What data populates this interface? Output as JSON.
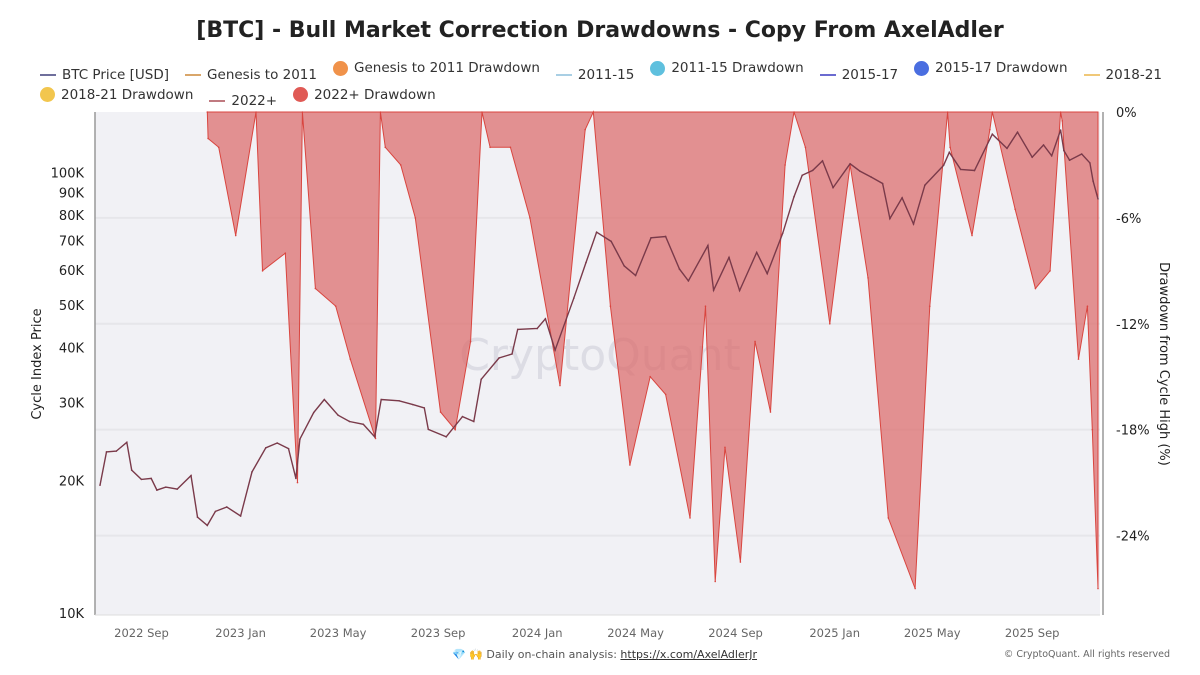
{
  "title": "[BTC] - Bull Market Correction Drawdowns - Copy From AxelAdler",
  "legend": [
    {
      "label": "BTC Price [USD]",
      "kind": "line",
      "color": "#6f6f9c"
    },
    {
      "label": "Genesis to 2011",
      "kind": "line",
      "color": "#d9a66a"
    },
    {
      "label": "Genesis to 2011 Drawdown",
      "kind": "dot",
      "color": "#f0924a"
    },
    {
      "label": "2011-15",
      "kind": "line",
      "color": "#a9cfe4"
    },
    {
      "label": "2011-15 Drawdown",
      "kind": "dot",
      "color": "#5fc0de"
    },
    {
      "label": "2015-17",
      "kind": "line",
      "color": "#6b6bd0"
    },
    {
      "label": "2015-17 Drawdown",
      "kind": "dot",
      "color": "#4a6ee0"
    },
    {
      "label": "2018-21",
      "kind": "line",
      "color": "#f0c878"
    },
    {
      "label": "2018-21 Drawdown",
      "kind": "dot",
      "color": "#f2c64e"
    },
    {
      "label": "2022+",
      "kind": "line",
      "color": "#c07a80"
    },
    {
      "label": "2022+ Drawdown",
      "kind": "dot",
      "color": "#e05a55"
    }
  ],
  "footer": {
    "icons": "💎 🙌",
    "text": "Daily on-chain analysis:",
    "link": "https://x.com/AxelAdlerJr",
    "copyright": "© CryptoQuant. All rights reserved"
  },
  "watermark": "CryptoQuant",
  "chart_data": {
    "type": "line+area",
    "title": "[BTC] - Bull Market Correction Drawdowns - Copy From AxelAdler",
    "ylabel_left": "Cycle Index Price",
    "ylabel_right": "Drawdown from Cycle High (%)",
    "xlim": [
      "2022-07-12",
      "2025-11-21"
    ],
    "ylim_left": [
      10000,
      137000
    ],
    "yscale_left": "log",
    "ylim_right": [
      -28.5,
      0
    ],
    "grid": true,
    "legend_position": "top",
    "x_ticks": [
      {
        "date": "2022-09-01",
        "label": "2022 Sep"
      },
      {
        "date": "2023-01-01",
        "label": "2023 Jan"
      },
      {
        "date": "2023-05-01",
        "label": "2023 May"
      },
      {
        "date": "2023-09-01",
        "label": "2023 Sep"
      },
      {
        "date": "2024-01-01",
        "label": "2024 Jan"
      },
      {
        "date": "2024-05-01",
        "label": "2024 May"
      },
      {
        "date": "2024-09-01",
        "label": "2024 Sep"
      },
      {
        "date": "2025-01-01",
        "label": "2025 Jan"
      },
      {
        "date": "2025-05-01",
        "label": "2025 May"
      },
      {
        "date": "2025-09-01",
        "label": "2025 Sep"
      }
    ],
    "y_ticks_left": [
      {
        "value": 10000,
        "label": "10K"
      },
      {
        "value": 20000,
        "label": "20K"
      },
      {
        "value": 30000,
        "label": "30K"
      },
      {
        "value": 40000,
        "label": "40K"
      },
      {
        "value": 50000,
        "label": "50K"
      },
      {
        "value": 60000,
        "label": "60K"
      },
      {
        "value": 70000,
        "label": "70K"
      },
      {
        "value": 80000,
        "label": "80K"
      },
      {
        "value": 90000,
        "label": "90K"
      },
      {
        "value": 100000,
        "label": "100K"
      }
    ],
    "y_ticks_right": [
      {
        "value": 0,
        "label": "0%"
      },
      {
        "value": -6,
        "label": "-6%"
      },
      {
        "value": -12,
        "label": "-12%"
      },
      {
        "value": -18,
        "label": "-18%"
      },
      {
        "value": -24,
        "label": "-24%"
      }
    ],
    "series": [
      {
        "name": "2022+",
        "axis": "left",
        "color": "#7a3a4a",
        "points": [
          [
            "2022-07-12",
            19500
          ],
          [
            "2022-07-20",
            23200
          ],
          [
            "2022-08-01",
            23300
          ],
          [
            "2022-08-14",
            24400
          ],
          [
            "2022-08-20",
            21100
          ],
          [
            "2022-09-01",
            20100
          ],
          [
            "2022-09-13",
            20200
          ],
          [
            "2022-09-20",
            19000
          ],
          [
            "2022-10-01",
            19300
          ],
          [
            "2022-10-15",
            19100
          ],
          [
            "2022-11-01",
            20500
          ],
          [
            "2022-11-09",
            16500
          ],
          [
            "2022-11-21",
            15800
          ],
          [
            "2022-12-01",
            17000
          ],
          [
            "2022-12-15",
            17400
          ],
          [
            "2023-01-01",
            16600
          ],
          [
            "2023-01-15",
            20900
          ],
          [
            "2023-02-01",
            23700
          ],
          [
            "2023-02-15",
            24300
          ],
          [
            "2023-03-01",
            23600
          ],
          [
            "2023-03-10",
            20200
          ],
          [
            "2023-03-15",
            24800
          ],
          [
            "2023-04-01",
            28500
          ],
          [
            "2023-04-14",
            30500
          ],
          [
            "2023-05-01",
            28100
          ],
          [
            "2023-05-15",
            27200
          ],
          [
            "2023-06-01",
            26800
          ],
          [
            "2023-06-15",
            25100
          ],
          [
            "2023-06-23",
            30500
          ],
          [
            "2023-07-15",
            30300
          ],
          [
            "2023-08-01",
            29700
          ],
          [
            "2023-08-15",
            29200
          ],
          [
            "2023-08-20",
            26100
          ],
          [
            "2023-09-11",
            25100
          ],
          [
            "2023-10-01",
            27900
          ],
          [
            "2023-10-15",
            27200
          ],
          [
            "2023-10-24",
            33900
          ],
          [
            "2023-11-15",
            37900
          ],
          [
            "2023-12-01",
            38700
          ],
          [
            "2023-12-08",
            44000
          ],
          [
            "2024-01-01",
            44200
          ],
          [
            "2024-01-11",
            46500
          ],
          [
            "2024-01-23",
            39500
          ],
          [
            "2024-02-15",
            51800
          ],
          [
            "2024-03-01",
            62400
          ],
          [
            "2024-03-14",
            73100
          ],
          [
            "2024-04-01",
            69700
          ],
          [
            "2024-04-17",
            61300
          ],
          [
            "2024-05-01",
            58300
          ],
          [
            "2024-05-20",
            71000
          ],
          [
            "2024-06-07",
            71500
          ],
          [
            "2024-06-24",
            60300
          ],
          [
            "2024-07-05",
            56700
          ],
          [
            "2024-07-29",
            68200
          ],
          [
            "2024-08-05",
            54000
          ],
          [
            "2024-08-24",
            64100
          ],
          [
            "2024-09-06",
            53900
          ],
          [
            "2024-09-27",
            65800
          ],
          [
            "2024-10-10",
            58900
          ],
          [
            "2024-10-29",
            72700
          ],
          [
            "2024-11-12",
            88000
          ],
          [
            "2024-11-22",
            98400
          ],
          [
            "2024-12-05",
            101000
          ],
          [
            "2024-12-17",
            106100
          ],
          [
            "2024-12-30",
            92300
          ],
          [
            "2025-01-20",
            104500
          ],
          [
            "2025-02-01",
            100600
          ],
          [
            "2025-02-15",
            97500
          ],
          [
            "2025-03-01",
            94300
          ],
          [
            "2025-03-10",
            78500
          ],
          [
            "2025-03-25",
            87500
          ],
          [
            "2025-04-08",
            76300
          ],
          [
            "2025-04-22",
            93500
          ],
          [
            "2025-05-15",
            103700
          ],
          [
            "2025-05-22",
            111000
          ],
          [
            "2025-06-05",
            101500
          ],
          [
            "2025-06-22",
            100900
          ],
          [
            "2025-07-14",
            122000
          ],
          [
            "2025-08-01",
            113300
          ],
          [
            "2025-08-14",
            123300
          ],
          [
            "2025-09-01",
            108200
          ],
          [
            "2025-09-15",
            115300
          ],
          [
            "2025-09-25",
            109000
          ],
          [
            "2025-10-06",
            124700
          ],
          [
            "2025-10-10",
            112000
          ],
          [
            "2025-10-17",
            106500
          ],
          [
            "2025-11-01",
            110000
          ],
          [
            "2025-11-11",
            105000
          ],
          [
            "2025-11-15",
            95500
          ],
          [
            "2025-11-21",
            87000
          ]
        ]
      },
      {
        "name": "2022+ Drawdown",
        "axis": "right",
        "color": "#e05a55",
        "points": [
          [
            "2022-11-21",
            0
          ],
          [
            "2022-11-22",
            -1.5
          ],
          [
            "2022-12-05",
            -2
          ],
          [
            "2022-12-26",
            -7
          ],
          [
            "2023-01-20",
            0
          ],
          [
            "2023-01-28",
            -9
          ],
          [
            "2023-02-25",
            -8
          ],
          [
            "2023-03-12",
            -21
          ],
          [
            "2023-03-18",
            0
          ],
          [
            "2023-04-03",
            -10
          ],
          [
            "2023-04-28",
            -11
          ],
          [
            "2023-05-16",
            -14
          ],
          [
            "2023-06-16",
            -18.5
          ],
          [
            "2023-06-22",
            0
          ],
          [
            "2023-06-28",
            -2
          ],
          [
            "2023-07-17",
            -3
          ],
          [
            "2023-08-04",
            -6
          ],
          [
            "2023-09-04",
            -17
          ],
          [
            "2023-09-22",
            -18
          ],
          [
            "2023-10-11",
            -13
          ],
          [
            "2023-10-25",
            0
          ],
          [
            "2023-11-04",
            -2
          ],
          [
            "2023-11-29",
            -2
          ],
          [
            "2023-12-23",
            -6
          ],
          [
            "2024-01-29",
            -15.5
          ],
          [
            "2024-02-29",
            -1
          ],
          [
            "2024-03-10",
            0
          ],
          [
            "2024-03-31",
            -11
          ],
          [
            "2024-04-24",
            -20
          ],
          [
            "2024-05-19",
            -15
          ],
          [
            "2024-06-07",
            -16
          ],
          [
            "2024-07-07",
            -23
          ],
          [
            "2024-07-26",
            -11
          ],
          [
            "2024-08-07",
            -26.6
          ],
          [
            "2024-08-19",
            -19
          ],
          [
            "2024-09-07",
            -25.5
          ],
          [
            "2024-09-25",
            -13
          ],
          [
            "2024-10-14",
            -17
          ],
          [
            "2024-11-01",
            -3
          ],
          [
            "2024-11-12",
            0
          ],
          [
            "2024-11-26",
            -2
          ],
          [
            "2024-12-26",
            -12
          ],
          [
            "2025-01-20",
            -3
          ],
          [
            "2025-02-11",
            -9.4
          ],
          [
            "2025-03-08",
            -23
          ],
          [
            "2025-04-10",
            -27
          ],
          [
            "2025-04-28",
            -11
          ],
          [
            "2025-05-20",
            0
          ],
          [
            "2025-05-23",
            -2
          ],
          [
            "2025-06-19",
            -7
          ],
          [
            "2025-07-11",
            -1
          ],
          [
            "2025-07-14",
            0
          ],
          [
            "2025-08-11",
            -5.5
          ],
          [
            "2025-09-05",
            -10
          ],
          [
            "2025-09-23",
            -9
          ],
          [
            "2025-10-06",
            0
          ],
          [
            "2025-10-08",
            -0.5
          ],
          [
            "2025-10-28",
            -14
          ],
          [
            "2025-11-08",
            -11
          ],
          [
            "2025-11-14",
            -18
          ],
          [
            "2025-11-21",
            -27
          ]
        ]
      }
    ]
  }
}
